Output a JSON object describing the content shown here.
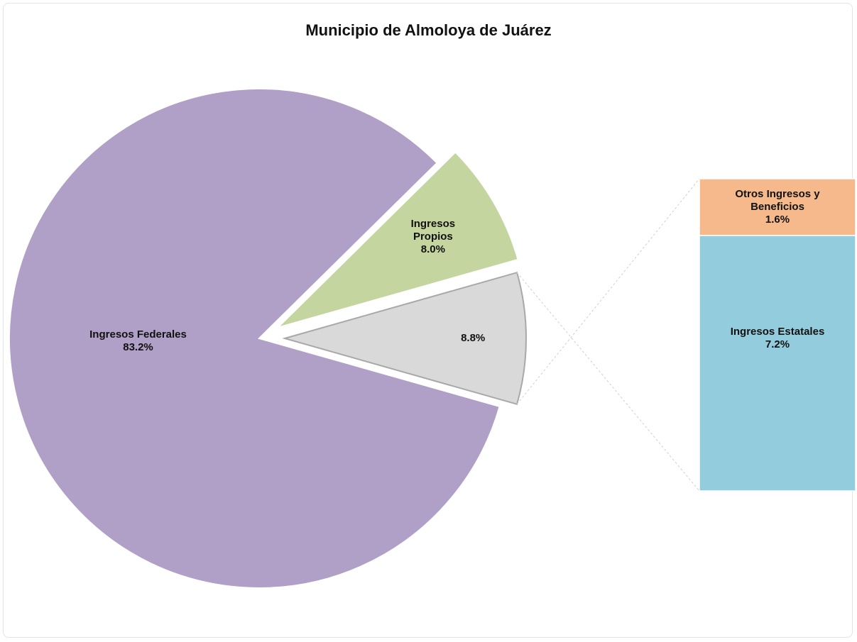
{
  "chart_data": {
    "type": "pie-of-bar",
    "title": "Municipio de Almoloya  de Juárez",
    "categories": [
      "Ingresos Federales",
      "Ingresos Propios",
      null
    ],
    "values": [
      83.2,
      8.0,
      8.8
    ],
    "value_labels": [
      "83.2%",
      "8.0%",
      "8.8%"
    ],
    "colors": [
      "#b09fc6",
      "#c4d59f",
      "#d9d9d9"
    ],
    "bar": {
      "categories": [
        "Otros Ingresos y Beneficios",
        "Ingresos Estatales"
      ],
      "values": [
        1.6,
        7.2
      ],
      "value_labels": [
        "1.6%",
        "7.2%"
      ],
      "colors": [
        "#f5b98c",
        "#93cddd"
      ]
    }
  }
}
